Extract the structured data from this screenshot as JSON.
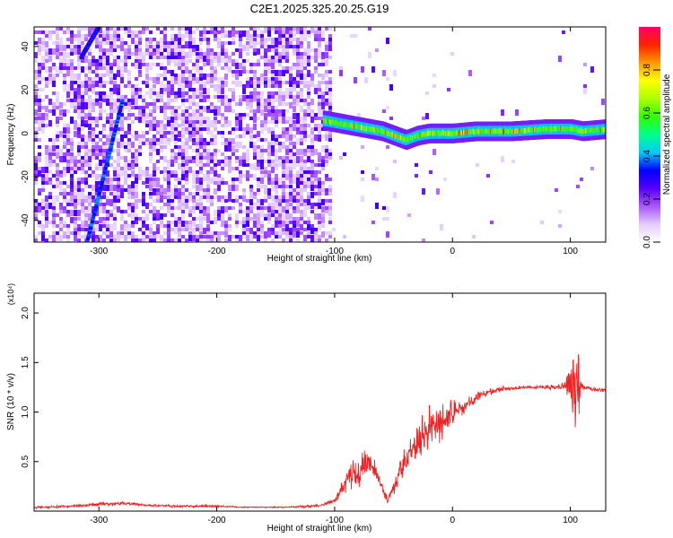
{
  "figure_title": "C2E1.2025.325.20.25.G19",
  "chart_data": [
    {
      "type": "heatmap",
      "title": "C2E1.2025.325.20.25.G19",
      "xlabel": "Height of straight line (km)",
      "ylabel": "Frequency (Hz)",
      "xlim": [
        -355,
        130
      ],
      "ylim": [
        -50,
        49
      ],
      "xticks": [
        -300,
        -200,
        -100,
        0,
        100
      ],
      "xtick_labels": [
        "-300",
        "-200",
        "-100",
        "0",
        "100"
      ],
      "yticks": [
        -40,
        -20,
        0,
        20,
        40
      ],
      "ytick_labels": [
        "-40",
        "-20",
        "0",
        "20",
        "40"
      ],
      "colorbar": {
        "label": "Normalized spectral amplitude",
        "range": [
          0.0,
          1.0
        ],
        "ticks": [
          0.0,
          0.2,
          0.4,
          0.6,
          0.8
        ],
        "tick_labels": [
          "0.0",
          "0.2",
          "0.4",
          "0.6",
          "0.8"
        ],
        "colors": [
          "#ffffff",
          "#e2ccff",
          "#aa55ff",
          "#5500ff",
          "#0000ff",
          "#00ccff",
          "#00ff88",
          "#33ff00",
          "#aaff00",
          "#ffff00",
          "#ff9900",
          "#ff2200",
          "#ff0066"
        ]
      },
      "features": [
        {
          "name": "main signal track",
          "x": [
            -110,
            -100,
            -80,
            -60,
            -50,
            -40,
            -30,
            -20,
            0,
            20,
            50,
            80,
            100,
            110,
            130
          ],
          "frequency": [
            6,
            5,
            3,
            1,
            -1,
            -3,
            -1,
            0,
            0,
            1,
            1,
            2,
            2,
            1,
            2
          ],
          "amplitude": 0.55
        },
        {
          "name": "diagonal streak",
          "x": [
            -310,
            -280
          ],
          "frequency": [
            -50,
            15
          ],
          "amplitude": 0.3
        },
        {
          "name": "upper-left streak",
          "x": [
            -315,
            -300
          ],
          "frequency": [
            35,
            49
          ],
          "amplitude": 0.25
        }
      ]
    },
    {
      "type": "line",
      "xlabel": "Height of straight line (km)",
      "ylabel": "SNR (10 * v/v)",
      "scale_label": "(x10⁴)",
      "xlim": [
        -355,
        130
      ],
      "ylim": [
        0,
        2.2
      ],
      "xticks": [
        -300,
        -200,
        -100,
        0,
        100
      ],
      "xtick_labels": [
        "-300",
        "-200",
        "-100",
        "0",
        "100"
      ],
      "yticks": [
        0.5,
        1.0,
        1.5,
        2.0
      ],
      "ytick_labels": [
        "0.5",
        "1.0",
        "1.5",
        "2.0"
      ],
      "series": [
        {
          "name": "SNR",
          "color": "#ee2222",
          "x": [
            -355,
            -340,
            -320,
            -300,
            -290,
            -280,
            -260,
            -240,
            -220,
            -200,
            -180,
            -160,
            -140,
            -120,
            -110,
            -100,
            -95,
            -90,
            -85,
            -80,
            -75,
            -70,
            -65,
            -60,
            -55,
            -50,
            -45,
            -40,
            -35,
            -30,
            -25,
            -20,
            -15,
            -10,
            -5,
            0,
            10,
            20,
            30,
            40,
            50,
            60,
            80,
            95,
            100,
            103,
            106,
            110,
            120,
            130
          ],
          "y": [
            0.04,
            0.04,
            0.05,
            0.07,
            0.07,
            0.08,
            0.06,
            0.05,
            0.05,
            0.05,
            0.04,
            0.04,
            0.04,
            0.05,
            0.06,
            0.1,
            0.2,
            0.3,
            0.4,
            0.35,
            0.45,
            0.5,
            0.38,
            0.25,
            0.1,
            0.25,
            0.35,
            0.5,
            0.6,
            0.72,
            0.78,
            0.8,
            0.85,
            0.9,
            0.95,
            1.0,
            1.05,
            1.15,
            1.2,
            1.23,
            1.24,
            1.25,
            1.25,
            1.26,
            1.24,
            1.3,
            1.22,
            1.25,
            1.23,
            1.22
          ],
          "noise": [
            0.02,
            0.02,
            0.02,
            0.03,
            0.03,
            0.03,
            0.02,
            0.02,
            0.02,
            0.02,
            0.01,
            0.01,
            0.01,
            0.02,
            0.02,
            0.05,
            0.1,
            0.15,
            0.25,
            0.2,
            0.3,
            0.2,
            0.15,
            0.1,
            0.05,
            0.15,
            0.25,
            0.3,
            0.3,
            0.32,
            0.35,
            0.35,
            0.3,
            0.3,
            0.25,
            0.2,
            0.12,
            0.08,
            0.05,
            0.04,
            0.03,
            0.03,
            0.03,
            0.05,
            0.3,
            0.95,
            0.9,
            0.05,
            0.03,
            0.03
          ]
        }
      ]
    }
  ]
}
